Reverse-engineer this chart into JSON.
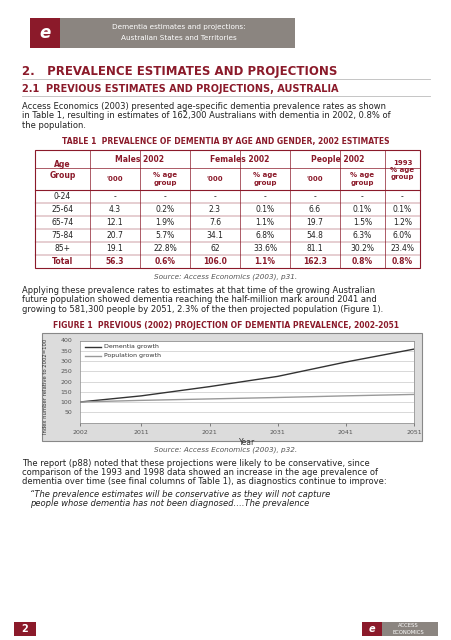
{
  "title_header_line1": "Dementia estimates and projections:",
  "title_header_line2": "Australian States and Territories",
  "section_title": "2.   PREVALENCE ESTIMATES AND PROJECTIONS",
  "subsection_title": "2.1  PREVIOUS ESTIMATES AND PROJECTIONS, AUSTRALIA",
  "body_text1_lines": [
    "Access Economics (2003) presented age-specific dementia prevalence rates as shown",
    "in Table 1, resulting in estimates of 162,300 Australians with dementia in 2002, 0.8% of",
    "the population."
  ],
  "table_title": "TABLE 1  PREVALENCE OF DEMENTIA BY AGE AND GENDER, 2002 ESTIMATES",
  "table_rows": [
    [
      "0-24",
      "-",
      "-",
      "-",
      "-",
      "-",
      "-",
      "-"
    ],
    [
      "25-64",
      "4.3",
      "0.2%",
      "2.3",
      "0.1%",
      "6.6",
      "0.1%",
      "0.1%"
    ],
    [
      "65-74",
      "12.1",
      "1.9%",
      "7.6",
      "1.1%",
      "19.7",
      "1.5%",
      "1.2%"
    ],
    [
      "75-84",
      "20.7",
      "5.7%",
      "34.1",
      "6.8%",
      "54.8",
      "6.3%",
      "6.0%"
    ],
    [
      "85+",
      "19.1",
      "22.8%",
      "62",
      "33.6%",
      "81.1",
      "30.2%",
      "23.4%"
    ],
    [
      "Total",
      "56.3",
      "0.6%",
      "106.0",
      "1.1%",
      "162.3",
      "0.8%",
      "0.8%"
    ]
  ],
  "table_source": "Source: Access Economics (2003), p31.",
  "body_text2_lines": [
    "Applying these prevalence rates to estimates at that time of the growing Australian",
    "future population showed dementia reaching the half-million mark around 2041 and",
    "growing to 581,300 people by 2051, 2.3% of the then projected population (Figure 1)."
  ],
  "figure_title": "FIGURE 1  PREVIOUS (2002) PROJECTION OF DEMENTIA PREVALENCE, 2002-2051",
  "chart_years": [
    2002,
    2011,
    2021,
    2031,
    2041,
    2051
  ],
  "dementia_values": [
    100,
    130,
    175,
    225,
    295,
    358
  ],
  "population_values": [
    100,
    108,
    115,
    122,
    130,
    137
  ],
  "ylabel": "Index number relative to 2002=100",
  "xlabel": "Year",
  "legend_dementia": "Dementia growth",
  "legend_population": "Population growth",
  "figure_source": "Source: Access Economics (2003), p32.",
  "footer_lines": [
    "The report (p88) noted that these projections were likely to be conservative, since",
    "comparison of the 1993 and 1998 data showed an increase in the age prevalence of",
    "dementia over time (see final columns of Table 1), as diagnostics continue to improve:"
  ],
  "quote_lines": [
    "“The prevalence estimates will be conservative as they will not capture",
    "people whose dementia has not been diagnosed….The prevalence"
  ],
  "page_number": "2",
  "header_bg_color": "#8B8580",
  "header_red_color": "#8B1A2A",
  "section_color": "#8B1A2A",
  "table_header_color": "#8B1A2A",
  "table_border_color": "#8B1A2A",
  "dementia_line_color": "#333333",
  "population_line_color": "#999999",
  "chart_bg_color": "#DCDCDC",
  "bg_color": "#FFFFFF",
  "text_color": "#222222"
}
